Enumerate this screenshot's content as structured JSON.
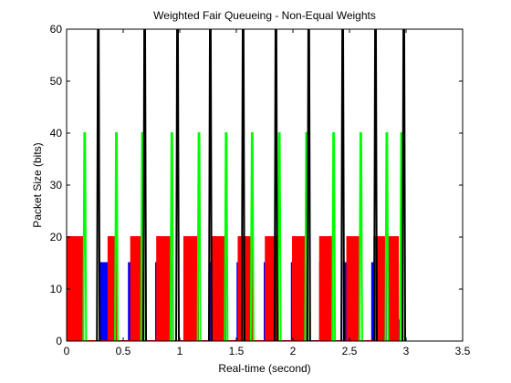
{
  "chart_data": {
    "type": "line",
    "title": "Weighted Fair Queueing - Non-Equal Weights",
    "xlabel": "Real-time (second)",
    "ylabel": "Packet Size (bits)",
    "xlim": [
      0,
      3.5
    ],
    "ylim": [
      0,
      60
    ],
    "x_ticks": [
      "0",
      "0.5",
      "1",
      "1.5",
      "2",
      "2.5",
      "3",
      "3.5"
    ],
    "y_ticks": [
      "0",
      "10",
      "20",
      "30",
      "40",
      "50",
      "60"
    ],
    "grid": false,
    "legend": "none",
    "series": [
      {
        "color": "#0000ff",
        "height": 15,
        "low_height": 4,
        "bursts": [
          [
            0.0,
            0.14
          ],
          [
            0.3,
            0.44
          ],
          [
            0.55,
            0.67
          ],
          [
            0.79,
            0.92
          ],
          [
            1.04,
            1.16
          ],
          [
            1.27,
            1.4
          ],
          [
            1.51,
            1.64
          ],
          [
            1.75,
            1.87
          ],
          [
            1.99,
            2.11
          ],
          [
            2.24,
            2.35
          ],
          [
            2.45,
            2.58
          ],
          [
            2.7,
            2.82
          ],
          [
            2.86,
            2.93
          ]
        ]
      },
      {
        "color": "#ff0000",
        "height": 20,
        "bursts": [
          [
            0.0,
            0.14
          ],
          [
            0.37,
            0.44
          ],
          [
            0.57,
            0.67
          ],
          [
            0.8,
            0.92
          ],
          [
            1.04,
            1.16
          ],
          [
            1.28,
            1.4
          ],
          [
            1.52,
            1.64
          ],
          [
            1.76,
            1.87
          ],
          [
            2.0,
            2.11
          ],
          [
            2.24,
            2.35
          ],
          [
            2.48,
            2.58
          ],
          [
            2.72,
            2.82
          ],
          [
            2.85,
            2.93
          ]
        ]
      },
      {
        "color": "#00ff00",
        "height": 40,
        "pulses": [
          0.16,
          0.44,
          0.67,
          0.93,
          1.17,
          1.41,
          1.64,
          1.88,
          2.12,
          2.36,
          2.6,
          2.83,
          2.96
        ]
      },
      {
        "color": "#000000",
        "height": 60,
        "pulses": [
          0.28,
          0.69,
          0.98,
          1.27,
          1.56,
          1.85,
          2.14,
          2.44,
          2.73,
          2.98
        ]
      }
    ]
  }
}
